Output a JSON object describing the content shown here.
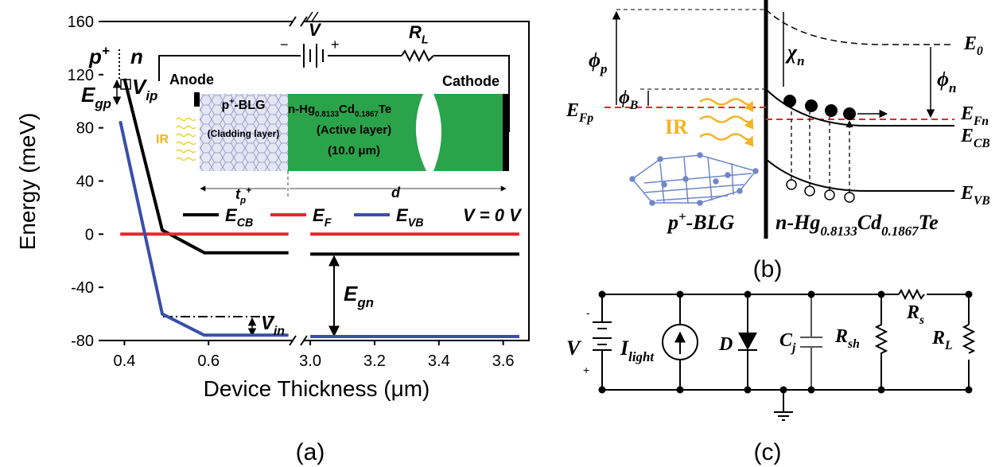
{
  "chart_data": {
    "type": "line",
    "xlabel": "Device Thickness (μm)",
    "ylabel": "Energy (meV)",
    "x_segments": [
      {
        "xlim": [
          0.35,
          0.8
        ],
        "xticks": [
          0.4,
          0.6
        ]
      },
      {
        "xlim": [
          2.98,
          3.68
        ],
        "xticks": [
          {
            "value": 3.0,
            "label": "3.0"
          },
          3.2,
          3.4,
          3.6
        ]
      }
    ],
    "ylim": [
      -80,
      160
    ],
    "yticks": [
      -80,
      -40,
      0,
      40,
      80,
      120,
      160
    ],
    "series": [
      {
        "name": [
          "E",
          "CB"
        ],
        "color": "#000000",
        "x": [
          0.4,
          0.49,
          0.59,
          0.79,
          null,
          3.0,
          3.65
        ],
        "values": [
          117,
          3,
          -14,
          -14,
          null,
          -15,
          -15
        ]
      },
      {
        "name": [
          "E",
          "F"
        ],
        "color": "#e8262a",
        "x": [
          0.39,
          0.79,
          null,
          3.0,
          3.65
        ],
        "values": [
          0,
          0,
          null,
          0,
          0
        ]
      },
      {
        "name": [
          "E",
          "VB"
        ],
        "color": "#3a4fa8",
        "x": [
          0.39,
          0.49,
          0.59,
          0.79,
          null,
          3.0,
          3.65
        ],
        "values": [
          85,
          -60,
          -76,
          -76,
          null,
          -77,
          -77
        ]
      }
    ],
    "annotations": {
      "p_plus": [
        "p",
        "+"
      ],
      "n": "n",
      "E_gp": [
        "E",
        "gp"
      ],
      "V_ip": [
        "V",
        "ip"
      ],
      "V_in": [
        "V",
        "in"
      ],
      "E_gn": [
        "E",
        "gn"
      ],
      "V0": "V = 0 V"
    },
    "inset": {
      "V": "V",
      "R_L": [
        "R",
        "L"
      ],
      "minus": "−",
      "plus": "+",
      "anode": "Anode",
      "cathode": "Cathode",
      "cladding": [
        "p",
        "+",
        "-BLG"
      ],
      "cladding_note": "(Cladding layer)",
      "active": [
        "n",
        "-Hg",
        "0.8133",
        "Cd",
        "0.1867",
        "Te"
      ],
      "active_note": "(Active layer)",
      "thickness": "(10.0 μm)",
      "IR": "IR",
      "t_p": [
        "t",
        "p",
        "+"
      ],
      "d": "d"
    },
    "caption": "(a)"
  },
  "band_diagram": {
    "phi_p": [
      "ϕ",
      "p"
    ],
    "phi_B": [
      "ϕ",
      "B"
    ],
    "chi_n": [
      "χ",
      "n"
    ],
    "phi_n": [
      "ϕ",
      "n"
    ],
    "E0": [
      "E",
      "0"
    ],
    "E_Fp": [
      "E",
      "Fp"
    ],
    "E_Fn": [
      "E",
      "Fn"
    ],
    "E_CB": [
      "E",
      "CB"
    ],
    "E_VB": [
      "E",
      "VB"
    ],
    "IR": "IR",
    "p_BLG": [
      "p",
      "+",
      "-BLG"
    ],
    "n_HgCdTe": [
      "n",
      "-Hg",
      "0.8133",
      "Cd",
      "0.1867",
      "Te"
    ],
    "caption": "(b)"
  },
  "circuit": {
    "V": "V",
    "I_light": [
      "I",
      "light"
    ],
    "D": "D",
    "C_j": [
      "C",
      "j"
    ],
    "R_sh": [
      "R",
      "sh"
    ],
    "R_s": [
      "R",
      "s"
    ],
    "R_L": [
      "R",
      "L"
    ],
    "minus": "-",
    "plus": "+",
    "caption": "(c)"
  }
}
